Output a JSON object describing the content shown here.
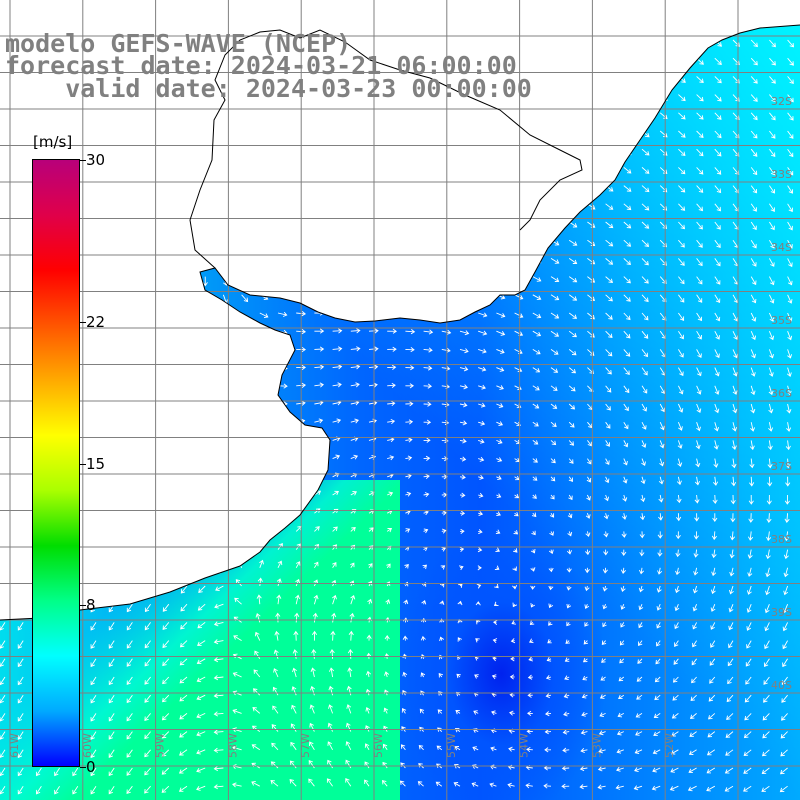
{
  "title": {
    "line1": "modelo GEFS-WAVE (NCEP)",
    "line2": "forecast date: 2024-03-21 06:00:00",
    "line3": "    valid date: 2024-03-23 00:00:00"
  },
  "legend": {
    "units": "[m/s]",
    "ticks": [
      {
        "label": "30",
        "value": 30
      },
      {
        "label": "22",
        "value": 22
      },
      {
        "label": "15",
        "value": 15
      },
      {
        "label": "8",
        "value": 8
      },
      {
        "label": "0",
        "value": 0
      }
    ],
    "min": 0,
    "max": 30,
    "colors": [
      "#0000ff",
      "#00aaff",
      "#00ffff",
      "#00ff88",
      "#00dd00",
      "#aaff00",
      "#ffff00",
      "#ffaa00",
      "#ff5500",
      "#ff0000",
      "#e0004a",
      "#b8007a"
    ]
  },
  "map": {
    "lat_labels": [
      "32S",
      "33S",
      "34S",
      "35S",
      "36S",
      "37S",
      "38S",
      "39S",
      "40S"
    ],
    "lon_labels": [
      "61W",
      "60W",
      "59W",
      "58W",
      "57W",
      "56W",
      "55W",
      "54W",
      "53W",
      "52W"
    ],
    "land_color": "#ffffff",
    "grid_color": "#808080",
    "arrow_color": "#ffffff"
  }
}
